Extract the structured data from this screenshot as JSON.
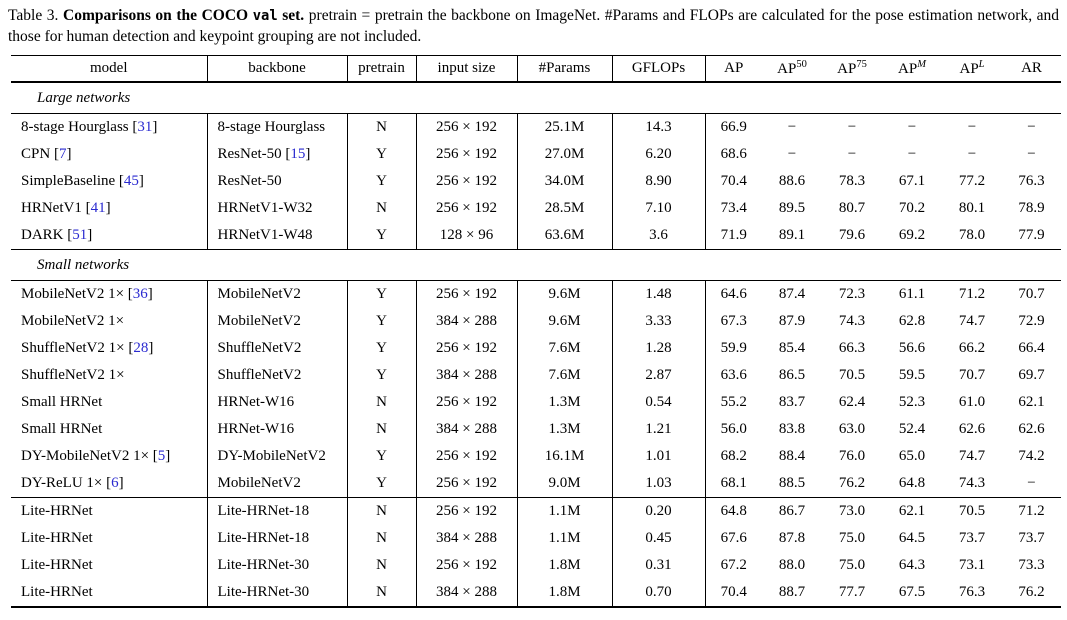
{
  "colors": {
    "citation_blue": "#2a2ad0",
    "text": "#000000",
    "rule": "#000000"
  },
  "caption": {
    "label": "Table 3.",
    "title_pre": "Comparisons on the COCO",
    "title_mono": "val",
    "title_post": "set.",
    "body": "pretrain = pretrain the backbone on ImageNet. #Params and FLOPs are calculated for the pose estimation network, and those for human detection and keypoint grouping are not included."
  },
  "table": {
    "columns": [
      {
        "id": "model",
        "label": "model"
      },
      {
        "id": "backbone",
        "label": "backbone"
      },
      {
        "id": "pretrain",
        "label": "pretrain"
      },
      {
        "id": "input-size",
        "label": "input size"
      },
      {
        "id": "params",
        "label": "#Params"
      },
      {
        "id": "gflops",
        "label": "GFLOPs"
      },
      {
        "id": "ap",
        "label": "AP"
      },
      {
        "id": "ap50",
        "label": "AP",
        "sup": "50",
        "sup_italic": false
      },
      {
        "id": "ap75",
        "label": "AP",
        "sup": "75",
        "sup_italic": false
      },
      {
        "id": "apm",
        "label": "AP",
        "sup": "M",
        "sup_italic": true
      },
      {
        "id": "apl",
        "label": "AP",
        "sup": "L",
        "sup_italic": true
      },
      {
        "id": "ar",
        "label": "AR"
      }
    ],
    "sections": [
      {
        "label": "Large networks",
        "groups": [
          [
            {
              "model": "8-stage Hourglass",
              "model_cite": "31",
              "backbone": "8-stage Hourglass",
              "backbone_cite": "",
              "pretrain": "N",
              "input_size": "256 × 192",
              "params": "25.1M",
              "gflops": "14.3",
              "metrics": [
                "66.9",
                "−",
                "−",
                "−",
                "−",
                "−"
              ]
            },
            {
              "model": "CPN",
              "model_cite": "7",
              "backbone": "ResNet-50",
              "backbone_cite": "15",
              "pretrain": "Y",
              "input_size": "256 × 192",
              "params": "27.0M",
              "gflops": "6.20",
              "metrics": [
                "68.6",
                "−",
                "−",
                "−",
                "−",
                "−"
              ]
            },
            {
              "model": "SimpleBaseline",
              "model_cite": "45",
              "backbone": "ResNet-50",
              "backbone_cite": "",
              "pretrain": "Y",
              "input_size": "256 × 192",
              "params": "34.0M",
              "gflops": "8.90",
              "metrics": [
                "70.4",
                "88.6",
                "78.3",
                "67.1",
                "77.2",
                "76.3"
              ]
            },
            {
              "model": "HRNetV1",
              "model_cite": "41",
              "backbone": "HRNetV1-W32",
              "backbone_cite": "",
              "pretrain": "N",
              "input_size": "256 × 192",
              "params": "28.5M",
              "gflops": "7.10",
              "metrics": [
                "73.4",
                "89.5",
                "80.7",
                "70.2",
                "80.1",
                "78.9"
              ]
            },
            {
              "model": "DARK",
              "model_cite": "51",
              "backbone": "HRNetV1-W48",
              "backbone_cite": "",
              "pretrain": "Y",
              "input_size": "128 × 96",
              "params": "63.6M",
              "gflops": "3.6",
              "metrics": [
                "71.9",
                "89.1",
                "79.6",
                "69.2",
                "78.0",
                "77.9"
              ]
            }
          ]
        ]
      },
      {
        "label": "Small networks",
        "groups": [
          [
            {
              "model": "MobileNetV2 1×",
              "model_cite": "36",
              "backbone": "MobileNetV2",
              "backbone_cite": "",
              "pretrain": "Y",
              "input_size": "256 × 192",
              "params": "9.6M",
              "gflops": "1.48",
              "metrics": [
                "64.6",
                "87.4",
                "72.3",
                "61.1",
                "71.2",
                "70.7"
              ]
            },
            {
              "model": "MobileNetV2 1×",
              "model_cite": "",
              "backbone": "MobileNetV2",
              "backbone_cite": "",
              "pretrain": "Y",
              "input_size": "384 × 288",
              "params": "9.6M",
              "gflops": "3.33",
              "metrics": [
                "67.3",
                "87.9",
                "74.3",
                "62.8",
                "74.7",
                "72.9"
              ]
            },
            {
              "model": "ShuffleNetV2 1×",
              "model_cite": "28",
              "backbone": "ShuffleNetV2",
              "backbone_cite": "",
              "pretrain": "Y",
              "input_size": "256 × 192",
              "params": "7.6M",
              "gflops": "1.28",
              "metrics": [
                "59.9",
                "85.4",
                "66.3",
                "56.6",
                "66.2",
                "66.4"
              ]
            },
            {
              "model": "ShuffleNetV2 1×",
              "model_cite": "",
              "backbone": "ShuffleNetV2",
              "backbone_cite": "",
              "pretrain": "Y",
              "input_size": "384 × 288",
              "params": "7.6M",
              "gflops": "2.87",
              "metrics": [
                "63.6",
                "86.5",
                "70.5",
                "59.5",
                "70.7",
                "69.7"
              ]
            },
            {
              "model": "Small HRNet",
              "model_cite": "",
              "backbone": "HRNet-W16",
              "backbone_cite": "",
              "pretrain": "N",
              "input_size": "256 × 192",
              "params": "1.3M",
              "gflops": "0.54",
              "metrics": [
                "55.2",
                "83.7",
                "62.4",
                "52.3",
                "61.0",
                "62.1"
              ]
            },
            {
              "model": "Small HRNet",
              "model_cite": "",
              "backbone": "HRNet-W16",
              "backbone_cite": "",
              "pretrain": "N",
              "input_size": "384 × 288",
              "params": "1.3M",
              "gflops": "1.21",
              "metrics": [
                "56.0",
                "83.8",
                "63.0",
                "52.4",
                "62.6",
                "62.6"
              ]
            },
            {
              "model": "DY-MobileNetV2 1×",
              "model_cite": "5",
              "backbone": "DY-MobileNetV2",
              "backbone_cite": "",
              "pretrain": "Y",
              "input_size": "256 × 192",
              "params": "16.1M",
              "gflops": "1.01",
              "metrics": [
                "68.2",
                "88.4",
                "76.0",
                "65.0",
                "74.7",
                "74.2"
              ]
            },
            {
              "model": "DY-ReLU 1×",
              "model_cite": "6",
              "backbone": "MobileNetV2",
              "backbone_cite": "",
              "pretrain": "Y",
              "input_size": "256 × 192",
              "params": "9.0M",
              "gflops": "1.03",
              "metrics": [
                "68.1",
                "88.5",
                "76.2",
                "64.8",
                "74.3",
                "−"
              ]
            }
          ],
          [
            {
              "model": "Lite-HRNet",
              "model_cite": "",
              "backbone": "Lite-HRNet-18",
              "backbone_cite": "",
              "pretrain": "N",
              "input_size": "256 × 192",
              "params": "1.1M",
              "gflops": "0.20",
              "metrics": [
                "64.8",
                "86.7",
                "73.0",
                "62.1",
                "70.5",
                "71.2"
              ]
            },
            {
              "model": "Lite-HRNet",
              "model_cite": "",
              "backbone": "Lite-HRNet-18",
              "backbone_cite": "",
              "pretrain": "N",
              "input_size": "384 × 288",
              "params": "1.1M",
              "gflops": "0.45",
              "metrics": [
                "67.6",
                "87.8",
                "75.0",
                "64.5",
                "73.7",
                "73.7"
              ]
            },
            {
              "model": "Lite-HRNet",
              "model_cite": "",
              "backbone": "Lite-HRNet-30",
              "backbone_cite": "",
              "pretrain": "N",
              "input_size": "256 × 192",
              "params": "1.8M",
              "gflops": "0.31",
              "metrics": [
                "67.2",
                "88.0",
                "75.0",
                "64.3",
                "73.1",
                "73.3"
              ]
            },
            {
              "model": "Lite-HRNet",
              "model_cite": "",
              "backbone": "Lite-HRNet-30",
              "backbone_cite": "",
              "pretrain": "N",
              "input_size": "384 × 288",
              "params": "1.8M",
              "gflops": "0.70",
              "metrics": [
                "70.4",
                "88.7",
                "77.7",
                "67.5",
                "76.3",
                "76.2"
              ]
            }
          ]
        ]
      }
    ]
  }
}
